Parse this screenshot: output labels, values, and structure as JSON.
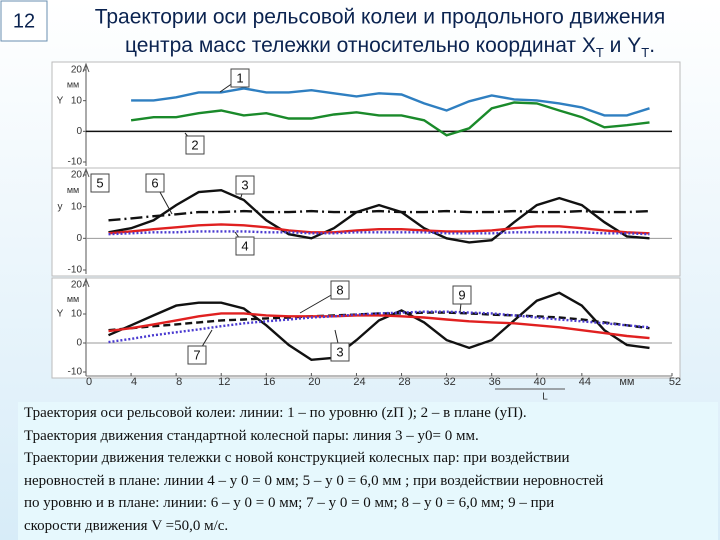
{
  "page_number": "12",
  "title": [
    "Траектории оси рельсовой колеи и продольного движения",
    "центра масс тележки относительно координат X",
    "Т",
    " и Y",
    "Т",
    "."
  ],
  "caption": [
    "Траектория оси рельсовой колеи: линии: 1 – по уровню (zП ); 2 – в плане (yП).",
    "Траектория движения стандартной колесной пары: линия 3 – y0= 0 мм.",
    "Траектории движения тележки с новой конструкцией колесных пар: при воздействии",
    "неровностей в плане: линии 4 – y 0 = 0 мм; 5 – y 0 = 6,0 мм ; при воздействии неровностей",
    "по уровню и в плане: линии: 6 – y 0 = 0 мм; 7 – y 0 = 0 мм; 8 – y 0 = 6,0 мм; 9 – при",
    "скорости движения V =50,0 м/с."
  ],
  "chart_data": [
    {
      "type": "line",
      "ylabel": "Y",
      "yunit": "мм",
      "xlim": [
        0,
        52
      ],
      "ylim": [
        -10,
        20
      ],
      "yticks": [
        20,
        10,
        0,
        -10
      ],
      "x": [
        2,
        4,
        6,
        8,
        10,
        12,
        14,
        16,
        18,
        20,
        22,
        24,
        26,
        28,
        30,
        32,
        34,
        36,
        38,
        40,
        42,
        44,
        46,
        48,
        50
      ],
      "annotations": [
        "1",
        "2"
      ],
      "series": [
        {
          "color": "#2f7fc1",
          "style": "solid",
          "values": [
            null,
            10.1,
            10.1,
            11.1,
            12.7,
            12.7,
            14,
            12.7,
            12.7,
            13.4,
            12.4,
            11.4,
            12.4,
            12,
            9.1,
            6.8,
            9.8,
            11.7,
            10.4,
            10.1,
            9.1,
            7.8,
            5.2,
            5.2,
            7.5
          ]
        },
        {
          "color": "#1a8a2a",
          "style": "solid",
          "values": [
            null,
            3.6,
            4.6,
            4.6,
            5.9,
            6.8,
            5.2,
            5.9,
            4.2,
            4.2,
            5.5,
            6.2,
            5.2,
            5.2,
            3.6,
            -1.3,
            1,
            7.5,
            9.4,
            9.1,
            6.8,
            4.6,
            1.3,
            2,
            2.9
          ]
        }
      ]
    },
    {
      "type": "line",
      "ylabel": "y",
      "yunit": "мм",
      "xlim": [
        0,
        52
      ],
      "ylim": [
        -10,
        20
      ],
      "yticks": [
        20,
        10,
        0,
        -10
      ],
      "x": [
        2,
        4,
        6,
        8,
        10,
        12,
        14,
        16,
        18,
        20,
        22,
        24,
        26,
        28,
        30,
        32,
        34,
        36,
        38,
        40,
        42,
        44,
        46,
        48,
        50
      ],
      "annotations": [
        "5",
        "6",
        "3",
        "4"
      ],
      "series": [
        {
          "color": "#111111",
          "style": "solid",
          "values": [
            1.9,
            3.2,
            5.7,
            10.5,
            14.6,
            15.2,
            12.1,
            5.7,
            1.3,
            0,
            3.2,
            8.3,
            10.5,
            8.3,
            3.2,
            0,
            -1.3,
            -0.6,
            5.1,
            10.5,
            12.7,
            10.5,
            5.1,
            0.6,
            0
          ]
        },
        {
          "color": "#111111",
          "style": "dashdot",
          "values": [
            5.7,
            6.3,
            7,
            7.6,
            8.3,
            8.3,
            8.6,
            8.3,
            8.3,
            8.6,
            8.3,
            8.3,
            8.6,
            8.3,
            8.3,
            8.6,
            8.3,
            8.3,
            8.6,
            8.3,
            8.3,
            8.6,
            8.3,
            8.3,
            8.6
          ]
        },
        {
          "color": "#e02020",
          "style": "solid",
          "values": [
            1.6,
            2.2,
            2.9,
            3.5,
            4.1,
            4.4,
            4.1,
            3.5,
            2.5,
            1.9,
            1.9,
            2.5,
            2.9,
            2.9,
            2.5,
            2.2,
            2.2,
            2.5,
            3.2,
            3.8,
            3.8,
            3.2,
            2.5,
            1.9,
            1.6
          ]
        },
        {
          "color": "#4a3ad0",
          "style": "dotted",
          "values": [
            1.3,
            1.6,
            1.9,
            1.9,
            2.2,
            2.2,
            2.2,
            1.9,
            1.9,
            1.6,
            1.6,
            1.9,
            1.9,
            1.9,
            1.9,
            1.6,
            1.6,
            1.6,
            1.9,
            1.9,
            1.9,
            1.9,
            1.6,
            1.6,
            1.3
          ]
        }
      ]
    },
    {
      "type": "line",
      "ylabel": "Y",
      "yunit": "мм",
      "xlabel": "L",
      "xunit": "мм",
      "xlim": [
        0,
        52
      ],
      "xticks": [
        0,
        4,
        8,
        12,
        16,
        20,
        24,
        28,
        32,
        36,
        40,
        44,
        52
      ],
      "ylim": [
        -10,
        20
      ],
      "yticks": [
        20,
        10,
        0,
        -10
      ],
      "x": [
        2,
        4,
        6,
        8,
        10,
        12,
        14,
        16,
        18,
        20,
        22,
        24,
        26,
        28,
        30,
        32,
        34,
        36,
        38,
        40,
        42,
        44,
        46,
        48,
        50
      ],
      "annotations": [
        "8",
        "9",
        "7",
        "3"
      ],
      "series": [
        {
          "color": "#111111",
          "style": "solid",
          "values": [
            2.7,
            6.1,
            9.5,
            12.9,
            13.9,
            13.9,
            11.9,
            6.1,
            -0.7,
            -5.8,
            -5.1,
            1,
            7.8,
            11.2,
            7.1,
            1,
            -1.7,
            1,
            7.8,
            14.6,
            17.3,
            12.9,
            4.4,
            -0.7,
            -1.7
          ]
        },
        {
          "color": "#111111",
          "style": "dashed",
          "values": [
            4.4,
            5.1,
            5.8,
            6.4,
            7.1,
            7.8,
            8.1,
            8.5,
            8.8,
            9.2,
            9.5,
            9.8,
            10.2,
            10.2,
            10.5,
            10.5,
            10.2,
            9.8,
            9.5,
            9.2,
            8.8,
            8.1,
            7.1,
            6.1,
            5.1
          ]
        },
        {
          "color": "#e02020",
          "style": "solid",
          "values": [
            4.1,
            5.1,
            6.4,
            7.8,
            9.2,
            10.2,
            10.2,
            9.5,
            9.2,
            9.2,
            9.2,
            9.5,
            9.5,
            9.2,
            8.8,
            8.1,
            7.5,
            7.1,
            6.8,
            6.1,
            5.4,
            4.4,
            3.4,
            2.4,
            1.7
          ]
        },
        {
          "color": "#4a3ad0",
          "style": "dotted",
          "values": [
            0.3,
            1.4,
            2.7,
            3.7,
            4.7,
            5.8,
            6.8,
            7.5,
            8.1,
            8.8,
            9.2,
            9.8,
            10.2,
            10.5,
            10.8,
            10.8,
            10.5,
            10.2,
            9.5,
            8.8,
            8.1,
            7.5,
            6.8,
            6.1,
            5.4
          ]
        }
      ]
    }
  ]
}
